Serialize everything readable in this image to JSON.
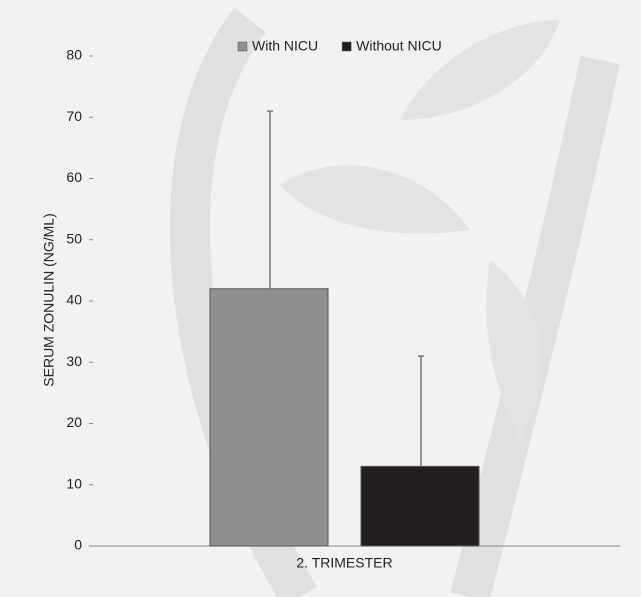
{
  "chart_data": {
    "type": "bar",
    "y_label": "SERUM ZONULIN (NG/ML)",
    "categories": [
      "2. TRIMESTER"
    ],
    "series": [
      {
        "name": "With NICU",
        "color": "#8e8f91",
        "values": [
          42
        ],
        "errors": [
          29
        ]
      },
      {
        "name": "Without NICU",
        "color": "#231f20",
        "values": [
          13
        ],
        "errors": [
          18
        ]
      }
    ],
    "ylim": [
      0,
      80
    ],
    "yticks": [
      0,
      10,
      20,
      30,
      40,
      50,
      60,
      70,
      80
    ],
    "legend": "top"
  }
}
